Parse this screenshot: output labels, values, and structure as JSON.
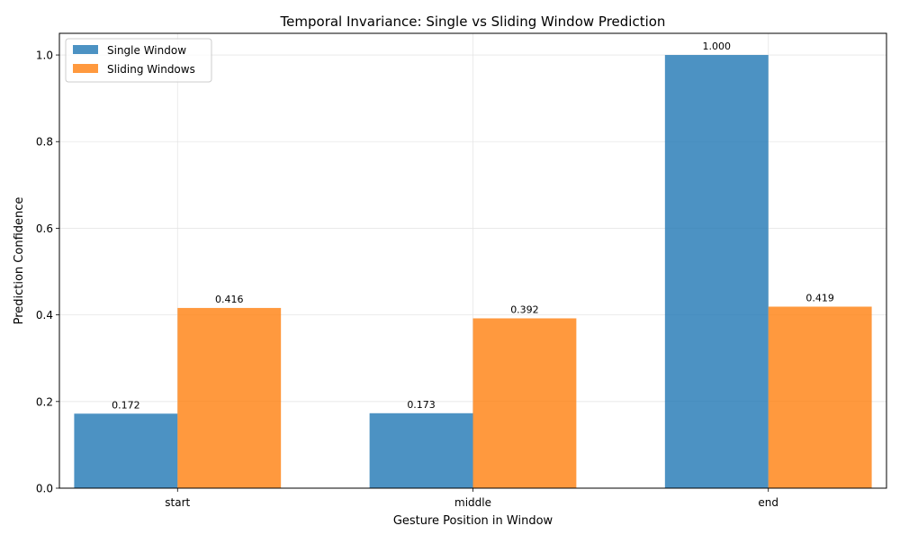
{
  "chart_data": {
    "type": "bar",
    "title": "Temporal Invariance: Single vs Sliding Window Prediction",
    "xlabel": "Gesture Position in Window",
    "ylabel": "Prediction Confidence",
    "categories": [
      "start",
      "middle",
      "end"
    ],
    "series": [
      {
        "name": "Single Window",
        "values": [
          0.172,
          0.173,
          1.0
        ],
        "labels": [
          "0.172",
          "0.173",
          "1.000"
        ],
        "color": "#1f77b4"
      },
      {
        "name": "Sliding Windows",
        "values": [
          0.416,
          0.392,
          0.419
        ],
        "labels": [
          "0.416",
          "0.392",
          "0.419"
        ],
        "color": "#ff7f0e"
      }
    ],
    "ylim": [
      0,
      1.05
    ],
    "yticks": [
      0.0,
      0.2,
      0.4,
      0.6,
      0.8,
      1.0
    ],
    "ytick_labels": [
      "0.0",
      "0.2",
      "0.4",
      "0.6",
      "0.8",
      "1.0"
    ],
    "grid": true,
    "legend_position": "top-left"
  }
}
